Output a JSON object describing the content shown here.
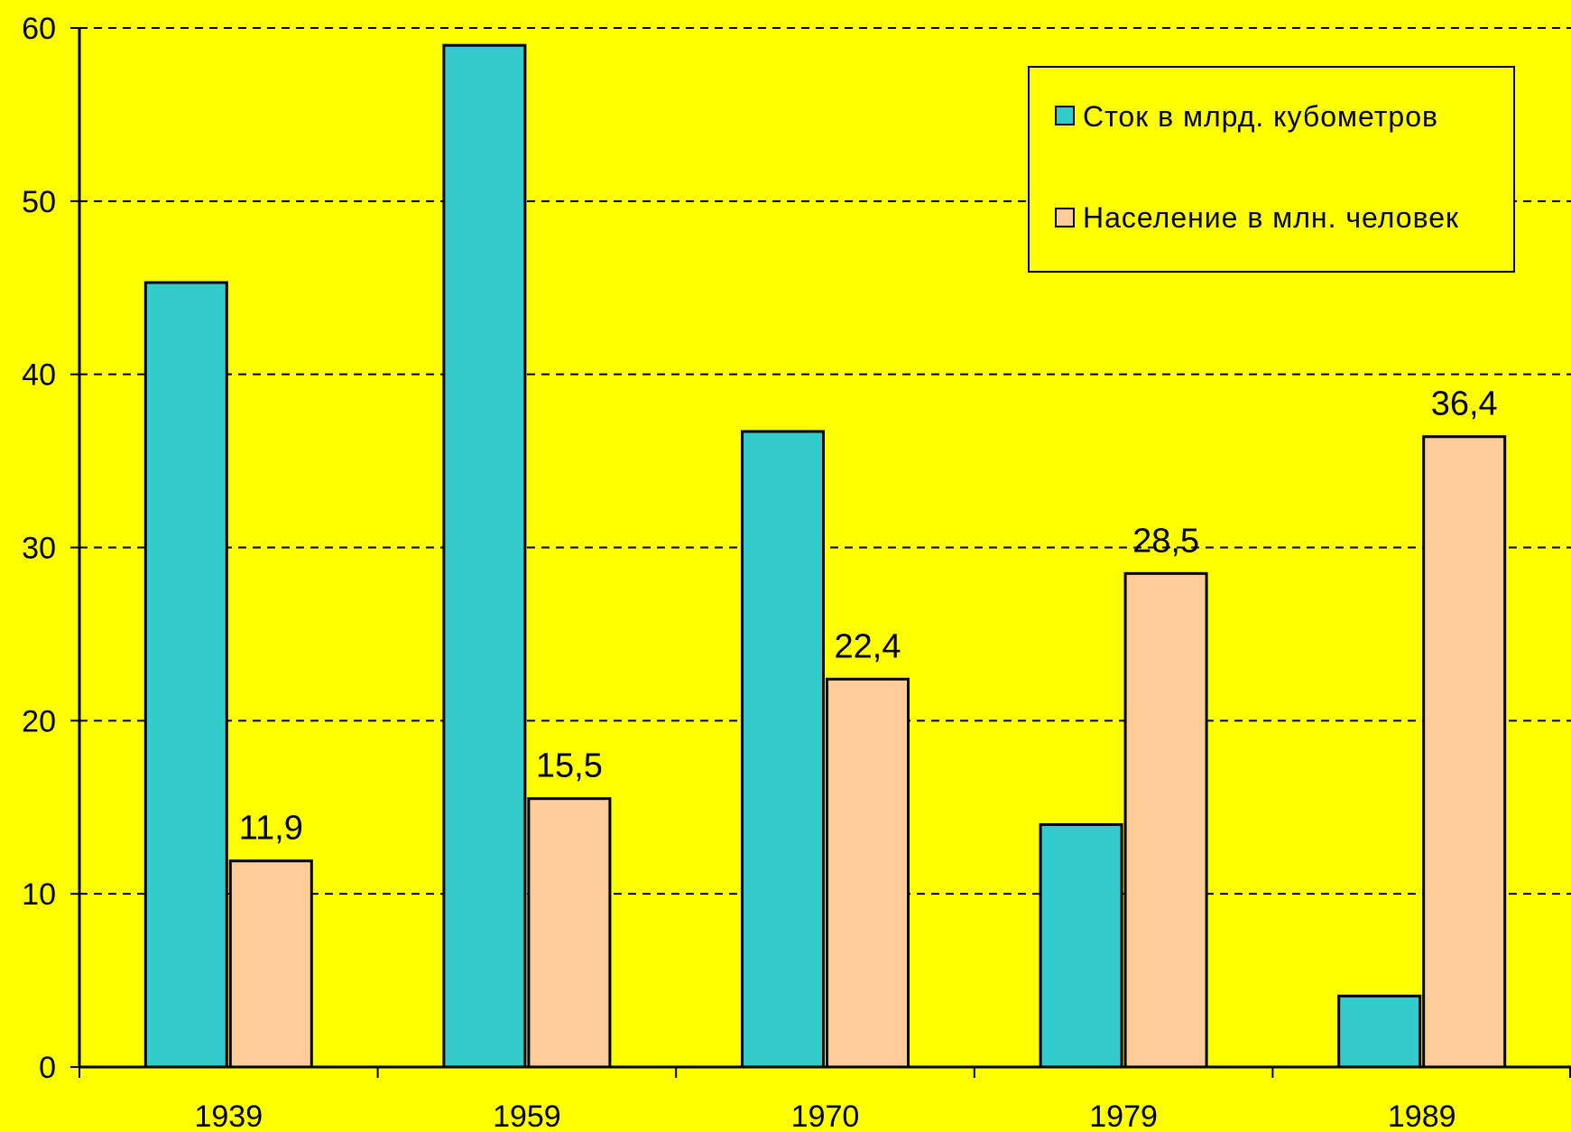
{
  "chart_data": {
    "type": "bar",
    "categories": [
      "1939",
      "1959",
      "1970",
      "1979",
      "1989"
    ],
    "series": [
      {
        "name": "Сток в млрд. кубометров",
        "color": "#33cccc",
        "values": [
          45.3,
          59.0,
          36.7,
          14.0,
          4.1
        ],
        "labels": [
          "",
          "",
          "",
          "",
          ""
        ]
      },
      {
        "name": "Население в млн. человек",
        "color": "#ffcc99",
        "values": [
          11.9,
          15.5,
          22.4,
          28.5,
          36.4
        ],
        "labels": [
          "11,9",
          "15,5",
          "22,4",
          "28,5",
          "36,4"
        ]
      }
    ],
    "y_ticks": [
      "0",
      "10",
      "20",
      "30",
      "40",
      "50",
      "60"
    ],
    "ylim": [
      0,
      60
    ],
    "grid": true,
    "grid_style": "dashed",
    "legend_position": "top-right",
    "background": "#ffff00"
  }
}
